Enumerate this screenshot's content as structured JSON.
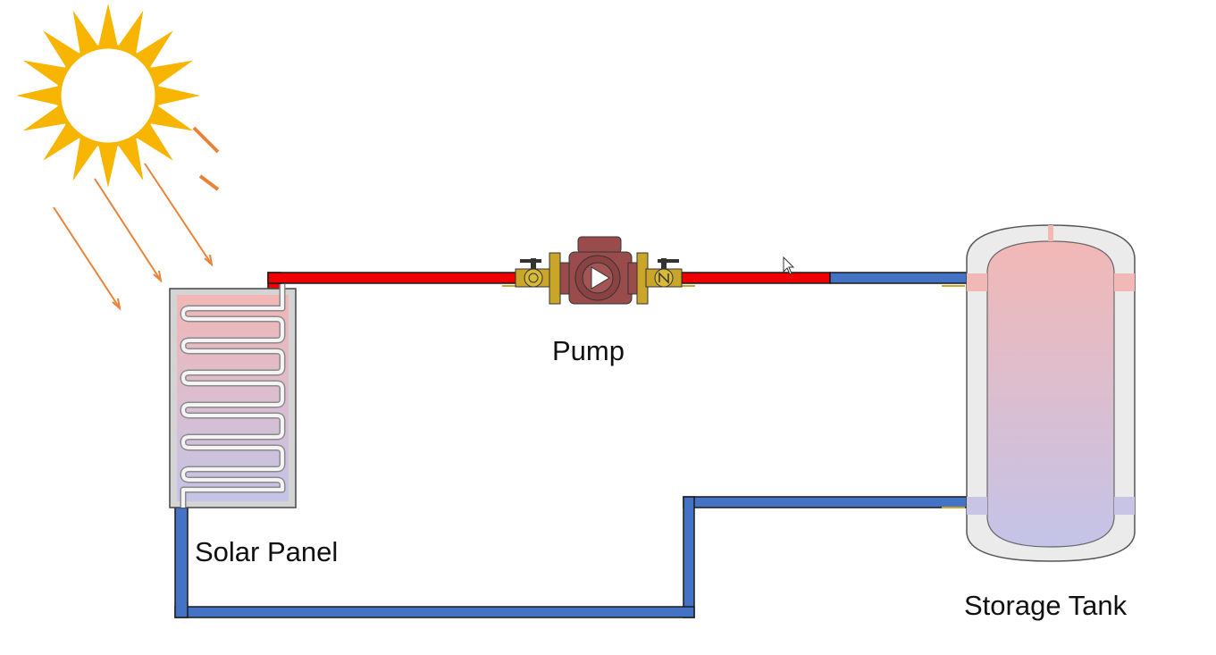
{
  "labels": {
    "pump": "Pump",
    "solar_panel": "Solar Panel",
    "storage_tank": "Storage Tank"
  },
  "colors": {
    "hot_pipe": "#ee0000",
    "cold_pipe": "#4472c4",
    "pipe_outline": "#1a1a1a",
    "sun": "#f7b500",
    "sun_rays": "#e8843a",
    "hot_fluid": "#f2b7b5",
    "cold_fluid": "#c4c4e8",
    "panel_frame": "#d4d4d4",
    "tank_shell": "#ebebeb",
    "pump_body": "#9a4b4b",
    "valve_brass": "#c9a52a"
  },
  "icons": {
    "sun": "sun-icon",
    "pump": "circulator-pump-icon",
    "cursor": "mouse-pointer-icon"
  }
}
